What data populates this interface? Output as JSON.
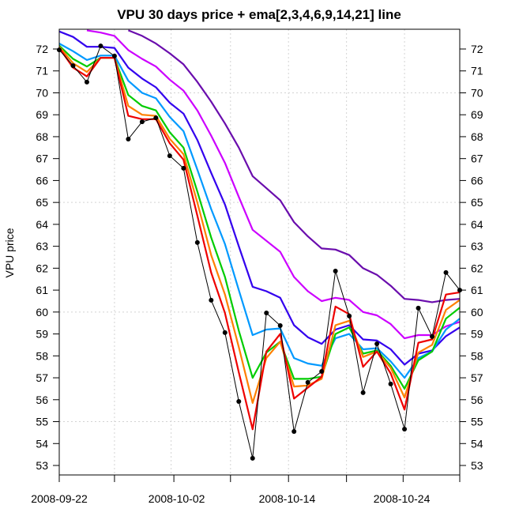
{
  "chart_data": {
    "type": "line",
    "title": "VPU 30 days price + ema[2,3,4,6,9,14,21] line",
    "xlabel": "",
    "ylabel": "VPU price",
    "ylim": [
      52.6,
      72.8
    ],
    "yticks": [
      53,
      54,
      55,
      56,
      57,
      58,
      59,
      60,
      61,
      62,
      63,
      64,
      65,
      66,
      67,
      68,
      69,
      70,
      71,
      72
    ],
    "ygrid": [
      55,
      60,
      65,
      70
    ],
    "x_tick_indices": [
      0,
      4,
      8,
      12,
      16,
      20,
      24,
      28,
      29
    ],
    "x_tick_labels": [
      {
        "index": 0,
        "label": "2008-09-22"
      },
      {
        "index": 8.5,
        "label": "2008-10-02"
      },
      {
        "index": 16.5,
        "label": "2008-10-14"
      },
      {
        "index": 24.8,
        "label": "2008-10-24"
      }
    ],
    "x_grid_indices": [
      4,
      8.1,
      12.4,
      16.6,
      20.8,
      25
    ],
    "grid": true,
    "n_points": 30,
    "price": {
      "name": "price",
      "color": "#000000",
      "values": [
        71.96,
        71.24,
        70.49,
        72.14,
        71.68,
        67.89,
        68.68,
        68.86,
        67.13,
        66.56,
        63.17,
        60.54,
        59.06,
        55.92,
        53.33,
        59.96,
        59.38,
        54.55,
        56.79,
        57.29,
        61.87,
        59.82,
        56.32,
        58.55,
        56.72,
        54.66,
        60.18,
        58.88,
        61.8,
        61.0
      ]
    },
    "series": [
      {
        "name": "ema21",
        "color": "#6a0dad",
        "values": [
          null,
          null,
          null,
          null,
          null,
          72.85,
          72.6,
          72.25,
          71.8,
          71.3,
          70.5,
          69.6,
          68.6,
          67.5,
          66.2,
          65.65,
          65.1,
          64.1,
          63.45,
          62.9,
          62.85,
          62.6,
          62.0,
          61.7,
          61.2,
          60.6,
          60.55,
          60.45,
          60.55,
          60.6
        ]
      },
      {
        "name": "ema14",
        "color": "#cc00ff",
        "values": [
          null,
          null,
          72.85,
          72.75,
          72.6,
          71.95,
          71.55,
          71.2,
          70.6,
          70.1,
          69.2,
          68.05,
          66.8,
          65.25,
          63.75,
          63.25,
          62.75,
          61.6,
          60.95,
          60.5,
          60.65,
          60.55,
          60.0,
          59.85,
          59.45,
          58.8,
          58.95,
          58.95,
          59.35,
          59.55
        ]
      },
      {
        "name": "ema9",
        "color": "#3300ee",
        "values": [
          72.8,
          72.55,
          72.1,
          72.1,
          72.05,
          71.15,
          70.65,
          70.25,
          69.55,
          69.05,
          67.85,
          66.35,
          64.9,
          63.0,
          61.15,
          60.95,
          60.65,
          59.4,
          58.85,
          58.55,
          59.2,
          59.4,
          58.75,
          58.7,
          58.3,
          57.6,
          58.1,
          58.25,
          58.9,
          59.3
        ]
      },
      {
        "name": "ema6",
        "color": "#0099ff",
        "values": [
          72.25,
          71.9,
          71.5,
          71.7,
          71.7,
          70.55,
          70.0,
          69.75,
          68.9,
          68.25,
          66.5,
          64.7,
          63.1,
          61.0,
          58.95,
          59.2,
          59.25,
          57.9,
          57.65,
          57.55,
          58.8,
          59.0,
          58.3,
          58.35,
          57.75,
          57.0,
          57.9,
          58.2,
          59.2,
          59.7
        ]
      },
      {
        "name": "ema4",
        "color": "#00cc00",
        "values": [
          72.15,
          71.55,
          71.2,
          71.6,
          71.6,
          69.9,
          69.4,
          69.2,
          68.2,
          67.5,
          65.5,
          63.4,
          61.6,
          59.15,
          57.0,
          58.15,
          58.65,
          56.95,
          56.95,
          57.05,
          59.0,
          59.3,
          58.1,
          58.25,
          57.55,
          56.5,
          57.8,
          58.2,
          59.7,
          60.2
        ]
      },
      {
        "name": "ema3",
        "color": "#ff8000",
        "values": [
          72.1,
          71.35,
          70.95,
          71.6,
          71.6,
          69.4,
          69.0,
          68.95,
          67.9,
          67.2,
          65.0,
          62.6,
          60.8,
          58.4,
          55.85,
          57.9,
          58.65,
          56.6,
          56.65,
          56.95,
          59.4,
          59.6,
          57.95,
          58.2,
          57.45,
          56.1,
          58.15,
          58.5,
          60.1,
          60.55
        ]
      },
      {
        "name": "ema2",
        "color": "#ee0000",
        "values": [
          72.05,
          71.15,
          70.75,
          71.6,
          71.6,
          68.95,
          68.8,
          68.8,
          67.7,
          66.95,
          64.4,
          61.8,
          59.95,
          57.25,
          54.65,
          58.2,
          59.0,
          56.05,
          56.55,
          57.05,
          60.25,
          59.9,
          57.5,
          58.2,
          57.2,
          55.55,
          58.6,
          58.75,
          60.8,
          60.9
        ]
      }
    ]
  }
}
